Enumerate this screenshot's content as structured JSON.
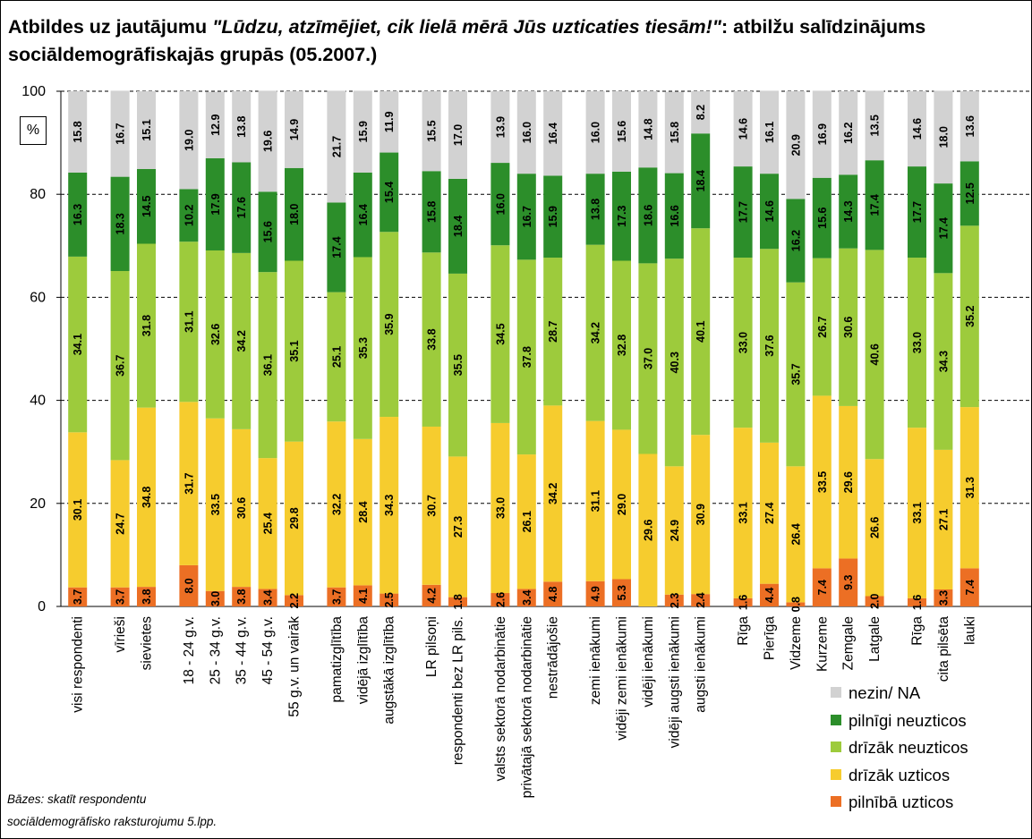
{
  "title": {
    "prefix": "Atbildes uz jautājumu ",
    "question": "\"Lūdzu, atzīmējiet, cik lielā mērā Jūs uzticaties tiesām!\"",
    "suffix": ": atbilžu salīdzinājums sociāldemogrāfiskajās grupās (05.2007.)"
  },
  "unit_label": "%",
  "footnote": {
    "line1": "Bāzes: skatīt respondentu",
    "line2": "sociāldemogrāfisko raksturojumu 5.lpp."
  },
  "colors": {
    "pilnibā_uzticos": "#ec6f24",
    "drizak_uzticos": "#f6cc2e",
    "drizak_neuzticos": "#9dcb3c",
    "pilnigi_neuzticos": "#2c8e2a",
    "nezin": "#d2d2d2",
    "grid": "#000000"
  },
  "chart_data": {
    "type": "bar",
    "stacked": true,
    "title": "Atbildes uz jautājumu \"Lūdzu, atzīmējiet, cik lielā mērā Jūs uzticaties tiesām!\": atbilžu salīdzinājums sociāldemogrāfiskajās grupās (05.2007.)",
    "ylabel": "%",
    "ylim": [
      0,
      100
    ],
    "yticks": [
      0,
      20,
      40,
      60,
      80,
      100
    ],
    "grid": true,
    "legend_position": "bottom-right",
    "categories": [
      "visi respondenti",
      "vīrieši",
      "sievietes",
      "18 - 24 g.v.",
      "25 - 34 g.v.",
      "35 - 44 g.v.",
      "45 - 54 g.v.",
      "55 g.v. un vairāk",
      "pamatizglītība",
      "vidējā izglītība",
      "augstākā izglītība",
      "LR pilsoņi",
      "respondenti bez LR pils.",
      "valsts sektorā nodarbinātie",
      "privātajā sektorā nodarbinātie",
      "nestrādājošie",
      "zemi ienākumi",
      "vidēji zemi ienākumi",
      "vidēji ienākumi",
      "vidēji augsti ienākumi",
      "augsti ienākumi",
      "Rīga",
      "Pierīga",
      "Vidzeme",
      "Kurzeme",
      "Zemgale",
      "Latgale",
      "Rīga",
      "cita pilsēta",
      "lauki"
    ],
    "groups": [
      [
        0
      ],
      [
        1,
        2
      ],
      [
        3,
        4,
        5,
        6,
        7
      ],
      [
        8,
        9,
        10
      ],
      [
        11,
        12
      ],
      [
        13,
        14,
        15
      ],
      [
        16,
        17,
        18,
        19,
        20
      ],
      [
        21,
        22,
        23,
        24,
        25,
        26
      ],
      [
        27,
        28,
        29
      ]
    ],
    "series": [
      {
        "name": "pilnībā uzticos",
        "color_key": "pilnibā_uzticos",
        "values": [
          3.7,
          3.7,
          3.8,
          8.0,
          3.0,
          3.8,
          3.4,
          2.2,
          3.7,
          4.1,
          2.5,
          4.2,
          1.8,
          2.6,
          3.4,
          4.8,
          4.9,
          5.3,
          0,
          2.3,
          2.4,
          1.6,
          4.4,
          0.8,
          7.4,
          9.3,
          2.0,
          1.6,
          3.3,
          7.4
        ],
        "labels": [
          "3.7",
          "3.7",
          "3.8",
          "8.0",
          "3.0",
          "3.8",
          "3.4",
          "2.2",
          "3.7",
          "4.1",
          "2.5",
          "4.2",
          "1.8",
          "2.6",
          "3.4",
          "4.8",
          "4.9",
          "5.3",
          "",
          "2.3",
          "2.4",
          "1.6",
          "4.4",
          "0.8",
          "7.4",
          "9.3",
          "2.0",
          "1.6",
          "3.3",
          "7.4"
        ]
      },
      {
        "name": "drīzāk uzticos",
        "color_key": "drizak_uzticos",
        "values": [
          30.1,
          24.7,
          34.8,
          31.7,
          33.5,
          30.6,
          25.4,
          29.8,
          32.2,
          28.4,
          34.3,
          30.7,
          27.3,
          33.0,
          26.1,
          34.2,
          31.1,
          29.0,
          29.6,
          24.9,
          30.9,
          33.1,
          27.4,
          26.4,
          33.5,
          29.6,
          26.6,
          33.1,
          27.1,
          31.3
        ],
        "labels": [
          "30.1",
          "24.7",
          "34.8",
          "31.7",
          "33.5",
          "30.6",
          "25.4",
          "29.8",
          "32.2",
          "28.4",
          "34.3",
          "30.7",
          "27.3",
          "33.0",
          "26.1",
          "34.2",
          "31.1",
          "29.0",
          "29.6",
          "24.9",
          "30.9",
          "33.1",
          "27.4",
          "26.4",
          "33.5",
          "29.6",
          "26.6",
          "33.1",
          "27.1",
          "31.3"
        ]
      },
      {
        "name": "drīzāk neuzticos",
        "color_key": "drizak_neuzticos",
        "values": [
          34.1,
          36.7,
          31.8,
          31.1,
          32.6,
          34.2,
          36.1,
          35.1,
          25.1,
          35.3,
          35.9,
          33.8,
          35.5,
          34.5,
          37.8,
          28.7,
          34.2,
          32.8,
          37.0,
          40.3,
          40.1,
          33.0,
          37.6,
          35.7,
          26.7,
          30.6,
          40.6,
          33.0,
          34.3,
          35.2
        ],
        "labels": [
          "34.1",
          "36.7",
          "31.8",
          "31.1",
          "32.6",
          "34.2",
          "36.1",
          "35.1",
          "25.1",
          "35.3",
          "35.9",
          "33.8",
          "35.5",
          "34.5",
          "37.8",
          "28.7",
          "34.2",
          "32.8",
          "37.0",
          "40.3",
          "40.1",
          "33.0",
          "37.6",
          "35.7",
          "26.7",
          "30.6",
          "40.6",
          "33.0",
          "34.3",
          "35.2"
        ]
      },
      {
        "name": "pilnīgi neuzticos",
        "color_key": "pilnigi_neuzticos",
        "values": [
          16.3,
          18.3,
          14.5,
          10.2,
          17.9,
          17.6,
          15.6,
          18.0,
          17.4,
          16.4,
          15.4,
          15.8,
          18.4,
          16.0,
          16.7,
          15.9,
          13.8,
          17.3,
          18.6,
          16.6,
          18.4,
          17.7,
          14.6,
          16.2,
          15.6,
          14.3,
          17.4,
          17.7,
          17.4,
          12.5
        ],
        "labels": [
          "16.3",
          "18.3",
          "14.5",
          "10.2",
          "17.9",
          "17.6",
          "15.6",
          "18.0",
          "17.4",
          "16.4",
          "15.4",
          "15.8",
          "18.4",
          "16.0",
          "16.7",
          "15.9",
          "13.8",
          "17.3",
          "18.6",
          "16.6",
          "18.4",
          "17.7",
          "14.6",
          "16.2",
          "15.6",
          "14.3",
          "17.4",
          "17.7",
          "17.4",
          "12.5"
        ]
      },
      {
        "name": "nezin/ NA",
        "color_key": "nezin",
        "values": [
          15.8,
          16.7,
          15.1,
          19.0,
          12.9,
          13.8,
          19.6,
          14.9,
          21.7,
          15.9,
          11.9,
          15.5,
          17.0,
          13.9,
          16.0,
          16.4,
          16.0,
          15.6,
          14.8,
          15.8,
          8.2,
          14.6,
          16.1,
          20.9,
          16.9,
          16.2,
          13.5,
          14.6,
          18.0,
          13.6
        ],
        "labels": [
          "15.8",
          "16.7",
          "15.1",
          "19.0",
          "12.9",
          "13.8",
          "19.6",
          "14.9",
          "21.7",
          "15.9",
          "11.9",
          "15.5",
          "17.0",
          "13.9",
          "16.0",
          "16.4",
          "16.0",
          "15.6",
          "14.8",
          "15.8",
          "8.2",
          "14.6",
          "16.1",
          "20.9",
          "16.9",
          "16.2",
          "13.5",
          "14.6",
          "18.0",
          "13.6"
        ]
      }
    ]
  },
  "legend": {
    "items": [
      {
        "label": "nezin/ NA",
        "color_key": "nezin"
      },
      {
        "label": "pilnīgi neuzticos",
        "color_key": "pilnigi_neuzticos"
      },
      {
        "label": "drīzāk neuzticos",
        "color_key": "drizak_neuzticos"
      },
      {
        "label": "drīzāk uzticos",
        "color_key": "drizak_uzticos"
      },
      {
        "label": "pilnībā uzticos",
        "color_key": "pilnibā_uzticos"
      }
    ]
  }
}
